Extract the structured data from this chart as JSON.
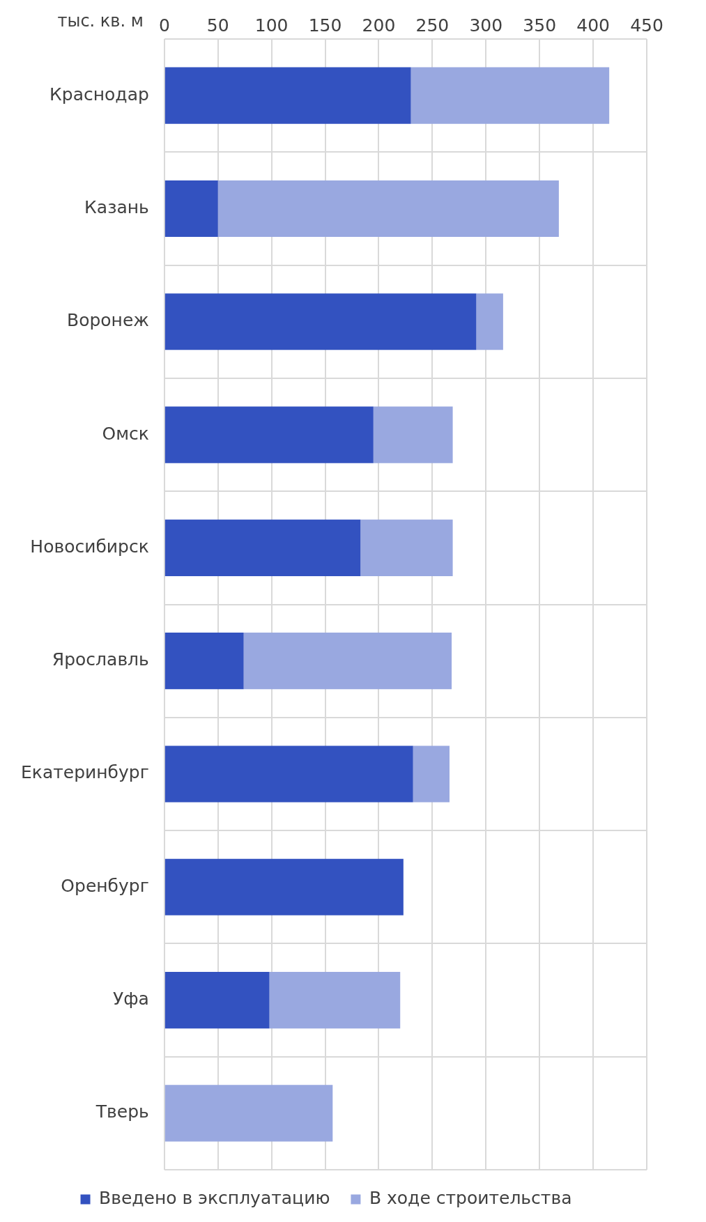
{
  "chart_data": {
    "type": "bar",
    "orientation": "horizontal",
    "stacked": true,
    "xlabel": "тыс. кв. м",
    "categories": [
      "Краснодар",
      "Казань",
      "Воронеж",
      "Омск",
      "Новосибирск",
      "Ярославль",
      "Екатеринбург",
      "Оренбург",
      "Уфа",
      "Тверь"
    ],
    "series": [
      {
        "name": "Введено в эксплуатацию",
        "color": "#3352c0",
        "values": [
          230,
          50,
          291,
          195,
          183,
          74,
          232,
          223,
          98,
          0
        ]
      },
      {
        "name": "В ходе строительства",
        "color": "#99a8e0",
        "values": [
          185,
          318,
          25,
          74,
          86,
          194,
          34,
          0,
          122,
          157
        ]
      }
    ],
    "xlim": [
      0,
      450
    ],
    "xticks": [
      0,
      50,
      100,
      150,
      200,
      250,
      300,
      350,
      400,
      450
    ],
    "grid": true,
    "legend": "bottom"
  }
}
